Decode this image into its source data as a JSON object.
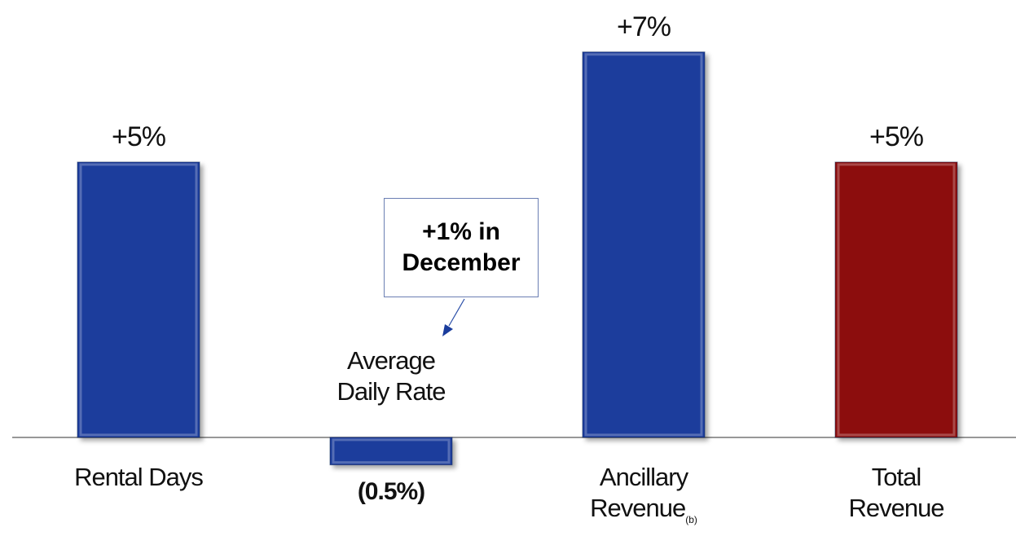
{
  "chart_data": {
    "type": "bar",
    "categories": [
      "Rental Days",
      "Average Daily Rate",
      "Ancillary Revenue",
      "Total Revenue"
    ],
    "values": [
      5,
      -0.5,
      7,
      5
    ],
    "value_labels": [
      "+5%",
      "(0.5%)",
      "+7%",
      "+5%"
    ],
    "colors": [
      "#1a3c9c",
      "#1a3c9c",
      "#1a3c9c",
      "#8c0a0a"
    ],
    "ylim": [
      -1.2,
      7.5
    ],
    "superscripts": [
      {
        "category": 2,
        "text": "(b)"
      }
    ],
    "annotation": {
      "category": 1,
      "text": "+1% in December"
    }
  }
}
